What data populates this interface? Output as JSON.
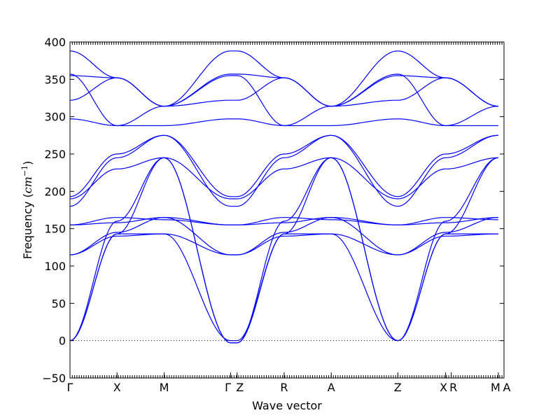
{
  "chart_data": {
    "type": "line",
    "title": "",
    "xlabel": "Wave vector",
    "ylabel_prefix": "Frequency (",
    "ylabel_unit_base": "cm",
    "ylabel_unit_exp": "−1",
    "ylabel_suffix": ")",
    "ylim": [
      -50,
      400
    ],
    "yticks": [
      -50,
      0,
      50,
      100,
      150,
      200,
      250,
      300,
      350,
      400
    ],
    "ytick_labels": [
      "−50",
      "0",
      "50",
      "100",
      "150",
      "200",
      "250",
      "300",
      "350",
      "400"
    ],
    "grid": false,
    "zero_line": 0,
    "segments": [
      {
        "from": "Γ",
        "to": "X",
        "length": 1.0
      },
      {
        "from": "X",
        "to": "M",
        "length": 1.0
      },
      {
        "from": "M",
        "to": "Γ",
        "length": 1.414
      },
      {
        "from": "Z",
        "to": "R",
        "length": 1.0
      },
      {
        "from": "R",
        "to": "A",
        "length": 1.0
      },
      {
        "from": "A",
        "to": "Z",
        "length": 1.414
      },
      {
        "from": "X",
        "to": "M",
        "length": 1.0
      },
      {
        "from": "M",
        "to": "A",
        "length": 0.12
      }
    ],
    "xtick_labels": [
      "Γ",
      "X",
      "M",
      "Γ",
      "Z",
      "R",
      "A",
      "Z",
      "X",
      "R",
      "M",
      "A"
    ],
    "xtick_positions": [
      0,
      1.0,
      2.0,
      3.414,
      3.55,
      4.55,
      5.55,
      6.964,
      7.98,
      8.1,
      9.1,
      9.22
    ],
    "xlim": [
      0,
      9.22
    ],
    "branches": [
      {
        "values_panel": [
          0,
          143,
          143,
          0
        ]
      },
      {
        "values_panel": [
          0,
          143,
          245,
          -3
        ]
      },
      {
        "values_panel": [
          0,
          160,
          245,
          -3
        ]
      },
      {
        "values_panel": [
          115,
          140,
          143,
          115
        ]
      },
      {
        "values_panel": [
          115,
          145,
          165,
          115
        ]
      },
      {
        "values_panel": [
          155,
          158,
          165,
          155
        ]
      },
      {
        "values_panel": [
          155,
          165,
          162,
          155
        ]
      },
      {
        "values_panel": [
          180,
          245,
          275,
          180
        ]
      },
      {
        "values_panel": [
          190,
          230,
          245,
          190
        ]
      },
      {
        "values_panel": [
          193,
          250,
          275,
          193
        ]
      },
      {
        "values_panel": [
          297,
          288,
          288,
          297
        ]
      },
      {
        "values_panel": [
          322,
          352,
          314,
          322
        ]
      },
      {
        "values_panel": [
          355,
          352,
          314,
          357
        ]
      },
      {
        "values_panel": [
          357,
          288,
          314,
          355
        ]
      },
      {
        "values_panel": [
          388,
          352,
          314,
          388
        ]
      }
    ]
  },
  "colors": {
    "band": "#0000ff",
    "axis": "#000000"
  }
}
